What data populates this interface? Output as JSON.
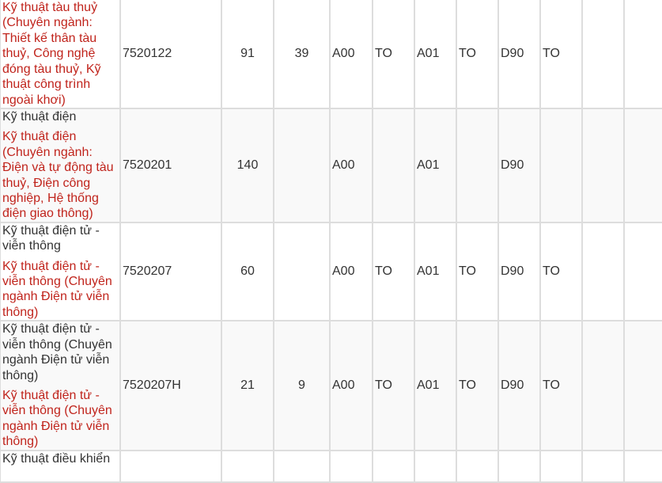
{
  "accent_color": "#c0241c",
  "rows": [
    {
      "names": [
        {
          "text": "Kỹ thuật tàu thuỷ (Chuyên ngành: Thiết kế thân tàu thuỷ, Công nghệ đóng tàu thuỷ, Kỹ thuật công trình ngoài khơi)",
          "red": true
        }
      ],
      "code": "7520122",
      "quota1": "91",
      "quota2": "39",
      "cells": [
        "A00",
        "TO",
        "A01",
        "TO",
        "D90",
        "TO",
        "",
        ""
      ]
    },
    {
      "names": [
        {
          "text": "Kỹ thuật điện",
          "red": false
        },
        {
          "text": "Kỹ thuật điện (Chuyên ngành: Điện và tự động tàu thuỷ, Điện công nghiệp, Hệ thống điện giao thông)",
          "red": true
        }
      ],
      "code": "7520201",
      "quota1": "140",
      "quota2": "",
      "cells": [
        "A00",
        "",
        "A01",
        "",
        "D90",
        "",
        "",
        ""
      ]
    },
    {
      "names": [
        {
          "text": "Kỹ thuật điện tử - viễn thông",
          "red": false
        },
        {
          "text": "Kỹ thuật điện tử - viễn thông (Chuyên ngành Điện tử viễn thông)",
          "red": true
        }
      ],
      "code": "7520207",
      "quota1": "60",
      "quota2": "",
      "cells": [
        "A00",
        "TO",
        "A01",
        "TO",
        "D90",
        "TO",
        "",
        ""
      ]
    },
    {
      "names": [
        {
          "text": "Kỹ thuật điện tử - viễn thông (Chuyên ngành Điện tử viễn thông)",
          "red": false
        },
        {
          "text": "Kỹ thuật điện tử - viễn thông (Chuyên ngành Điện tử viễn thông)",
          "red": true
        }
      ],
      "code": "7520207H",
      "quota1": "21",
      "quota2": "9",
      "cells": [
        "A00",
        "TO",
        "A01",
        "TO",
        "D90",
        "TO",
        "",
        ""
      ]
    },
    {
      "names": [
        {
          "text": "Kỹ thuật điều khiển",
          "red": false
        }
      ],
      "code": "",
      "quota1": "",
      "quota2": "",
      "cells": [
        "",
        "",
        "",
        "",
        "",
        "",
        "",
        ""
      ]
    }
  ]
}
